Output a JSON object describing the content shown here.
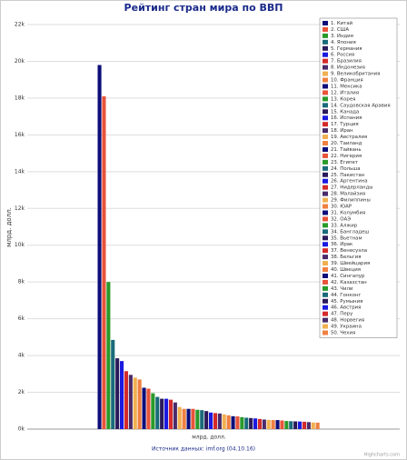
{
  "chart_data": {
    "type": "bar",
    "title": "Рейтинг стран мира по ВВП",
    "y_axis_title": "млрд. долл.",
    "categories": [
      "млрд. долл."
    ],
    "credits": "Источник данных: imf.org (04.10.16)",
    "watermark": "Highcharts.com",
    "ylim": [
      0,
      22000
    ],
    "yticks": [
      {
        "value": 0,
        "label": "0k"
      },
      {
        "value": 2000,
        "label": "2k"
      },
      {
        "value": 4000,
        "label": "4k"
      },
      {
        "value": 6000,
        "label": "6k"
      },
      {
        "value": 8000,
        "label": "8k"
      },
      {
        "value": 10000,
        "label": "10k"
      },
      {
        "value": 12000,
        "label": "12k"
      },
      {
        "value": 14000,
        "label": "14k"
      },
      {
        "value": 16000,
        "label": "16k"
      },
      {
        "value": 18000,
        "label": "18k"
      },
      {
        "value": 20000,
        "label": "20k"
      },
      {
        "value": 22000,
        "label": "22k"
      }
    ],
    "grid": true,
    "legend": "top-right",
    "series": [
      {
        "name": "1. Китай",
        "color": "#0d0d7a",
        "values": [
          19800
        ]
      },
      {
        "name": "2. США",
        "color": "#e8543a",
        "values": [
          18100
        ]
      },
      {
        "name": "3. Индия",
        "color": "#2a9a2a",
        "values": [
          8000
        ]
      },
      {
        "name": "4. Япония",
        "color": "#1a6a7a",
        "values": [
          4850
        ]
      },
      {
        "name": "5. Германия",
        "color": "#2a1a5a",
        "values": [
          3850
        ]
      },
      {
        "name": "6. Россия",
        "color": "#1a1ae0",
        "values": [
          3700
        ]
      },
      {
        "name": "7. Бразилия",
        "color": "#d42a2a",
        "values": [
          3150
        ]
      },
      {
        "name": "8. Индонезия",
        "color": "#4a2a6a",
        "values": [
          2950
        ]
      },
      {
        "name": "9. Великобритания",
        "color": "#f0b050",
        "values": [
          2800
        ]
      },
      {
        "name": "10. Франция",
        "color": "#f08040",
        "values": [
          2700
        ]
      },
      {
        "name": "11. Мексика",
        "color": "#0d0d7a",
        "values": [
          2250
        ]
      },
      {
        "name": "12. Италия",
        "color": "#e8543a",
        "values": [
          2200
        ]
      },
      {
        "name": "13. Корея",
        "color": "#2a9a2a",
        "values": [
          1950
        ]
      },
      {
        "name": "14. Саудовская Аравия",
        "color": "#1a6a7a",
        "values": [
          1750
        ]
      },
      {
        "name": "15. Канада",
        "color": "#2a1a5a",
        "values": [
          1650
        ]
      },
      {
        "name": "16. Испания",
        "color": "#1a1ae0",
        "values": [
          1650
        ]
      },
      {
        "name": "17. Турция",
        "color": "#d42a2a",
        "values": [
          1600
        ]
      },
      {
        "name": "18. Иран",
        "color": "#4a2a6a",
        "values": [
          1450
        ]
      },
      {
        "name": "19. Австралия",
        "color": "#f0b050",
        "values": [
          1200
        ]
      },
      {
        "name": "20. Таиланд",
        "color": "#f08040",
        "values": [
          1100
        ]
      },
      {
        "name": "21. Тайвань",
        "color": "#0d0d7a",
        "values": [
          1100
        ]
      },
      {
        "name": "22. Нигерия",
        "color": "#e8543a",
        "values": [
          1100
        ]
      },
      {
        "name": "23. Египет",
        "color": "#2a9a2a",
        "values": [
          1050
        ]
      },
      {
        "name": "24. Польша",
        "color": "#1a6a7a",
        "values": [
          1030
        ]
      },
      {
        "name": "25. Пакистан",
        "color": "#2a1a5a",
        "values": [
          980
        ]
      },
      {
        "name": "26. Аргентина",
        "color": "#1a1ae0",
        "values": [
          900
        ]
      },
      {
        "name": "27. Нидерланды",
        "color": "#d42a2a",
        "values": [
          870
        ]
      },
      {
        "name": "28. Малайзия",
        "color": "#4a2a6a",
        "values": [
          850
        ]
      },
      {
        "name": "29. Филиппины",
        "color": "#f0b050",
        "values": [
          800
        ]
      },
      {
        "name": "30. ЮАР",
        "color": "#f08040",
        "values": [
          750
        ]
      },
      {
        "name": "31. Колумбия",
        "color": "#0d0d7a",
        "values": [
          700
        ]
      },
      {
        "name": "32. ОАЭ",
        "color": "#e8543a",
        "values": [
          690
        ]
      },
      {
        "name": "33. Алжир",
        "color": "#2a9a2a",
        "values": [
          650
        ]
      },
      {
        "name": "34. Бангладеш",
        "color": "#1a6a7a",
        "values": [
          620
        ]
      },
      {
        "name": "35. Вьетнам",
        "color": "#2a1a5a",
        "values": [
          600
        ]
      },
      {
        "name": "36. Ирак",
        "color": "#1a1ae0",
        "values": [
          580
        ]
      },
      {
        "name": "37. Венесуэла",
        "color": "#d42a2a",
        "values": [
          550
        ]
      },
      {
        "name": "38. Бельгия",
        "color": "#4a2a6a",
        "values": [
          520
        ]
      },
      {
        "name": "39. Швейцария",
        "color": "#f0b050",
        "values": [
          500
        ]
      },
      {
        "name": "40. Швеция",
        "color": "#f08040",
        "values": [
          490
        ]
      },
      {
        "name": "41. Сингапур",
        "color": "#0d0d7a",
        "values": [
          490
        ]
      },
      {
        "name": "42. Казахстан",
        "color": "#e8543a",
        "values": [
          470
        ]
      },
      {
        "name": "43. Чили",
        "color": "#2a9a2a",
        "values": [
          440
        ]
      },
      {
        "name": "44. Гонконг",
        "color": "#1a6a7a",
        "values": [
          430
        ]
      },
      {
        "name": "45. Румыния",
        "color": "#2a1a5a",
        "values": [
          420
        ]
      },
      {
        "name": "46. Австрия",
        "color": "#1a1ae0",
        "values": [
          410
        ]
      },
      {
        "name": "47. Перу",
        "color": "#d42a2a",
        "values": [
          400
        ]
      },
      {
        "name": "48. Норвегия",
        "color": "#4a2a6a",
        "values": [
          380
        ]
      },
      {
        "name": "49. Украина",
        "color": "#f0b050",
        "values": [
          360
        ]
      },
      {
        "name": "50. Чехия",
        "color": "#f08040",
        "values": [
          350
        ]
      }
    ]
  }
}
